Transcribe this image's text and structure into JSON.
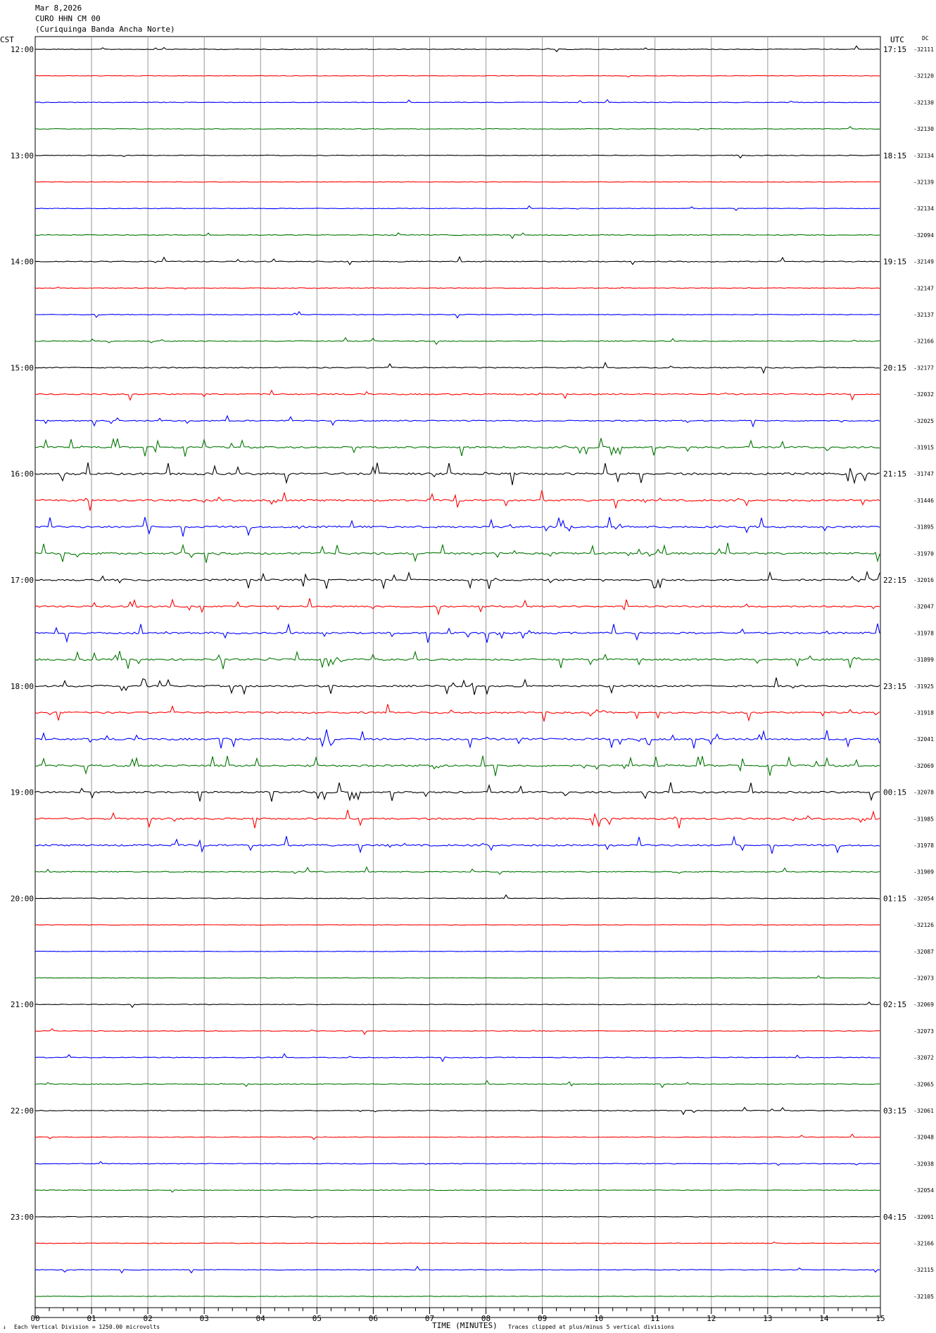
{
  "header": {
    "date": "Mar 8,2026",
    "station": "CURO HHN CM 00",
    "station_name": "(Curiquinga Banda Ancha Norte)"
  },
  "axes": {
    "left_zone": "CST",
    "right_zone": "UTC",
    "dc_label": "DC",
    "x_title": "TIME (MINUTES)"
  },
  "footer": {
    "mark": "↓",
    "scale_note": "Each Vertical Division = 1250.00 microvolts",
    "clip_note": "Traces clipped at plus/minus 5 vertical divisions"
  },
  "colors": {
    "trace_cycle": [
      "#000000",
      "#ff0000",
      "#0000ff",
      "#007700"
    ],
    "grid": "#999999"
  },
  "chart_data": {
    "type": "line",
    "title": "",
    "xlabel": "TIME (MINUTES)",
    "xlim": [
      0,
      15
    ],
    "x_ticks": [
      "00",
      "01",
      "02",
      "03",
      "04",
      "05",
      "06",
      "07",
      "08",
      "09",
      "10",
      "11",
      "12",
      "13",
      "14",
      "15"
    ],
    "rows_per_hour": 4,
    "left_hour_labels": [
      "12:00",
      "13:00",
      "14:00",
      "15:00",
      "16:00",
      "17:00",
      "18:00",
      "19:00",
      "20:00",
      "21:00",
      "22:00",
      "23:00"
    ],
    "right_hour_labels": [
      "17:15",
      "18:15",
      "19:15",
      "20:15",
      "21:15",
      "22:15",
      "23:15",
      "00:15",
      "01:15",
      "02:15",
      "03:15",
      "04:15"
    ],
    "dc_offsets": [
      "-32111",
      "-32120",
      "-32130",
      "-32130",
      "-32134",
      "-32139",
      "-32134",
      "-32094",
      "-32149",
      "-32147",
      "-32137",
      "-32166",
      "-32177",
      "-32032",
      "-32025",
      "-31915",
      "-31747",
      "-31446",
      "-31895",
      "-31970",
      "-32016",
      "-32047",
      "-31978",
      "-31899",
      "-31925",
      "-31918",
      "-32041",
      "-32069",
      "-32078",
      "-31985",
      "-31978",
      "-31909",
      "-32054",
      "-32126",
      "-32087",
      "-32073",
      "-32069",
      "-32073",
      "-32072",
      "-32065",
      "-32061",
      "-32048",
      "-32038",
      "-32054",
      "-32091",
      "-32166",
      "-32115",
      "-32105"
    ],
    "activity": [
      0.15,
      0.05,
      0.1,
      0.2,
      0.15,
      0.05,
      0.1,
      0.2,
      0.3,
      0.2,
      0.15,
      0.25,
      0.35,
      0.5,
      0.4,
      0.8,
      1.0,
      0.9,
      0.95,
      0.95,
      0.8,
      0.7,
      0.85,
      0.85,
      0.8,
      0.75,
      0.9,
      0.9,
      0.85,
      0.8,
      0.8,
      0.3,
      0.15,
      0.05,
      0.05,
      0.05,
      0.1,
      0.15,
      0.2,
      0.2,
      0.2,
      0.1,
      0.15,
      0.15,
      0.1,
      0.1,
      0.15,
      0.1
    ]
  }
}
